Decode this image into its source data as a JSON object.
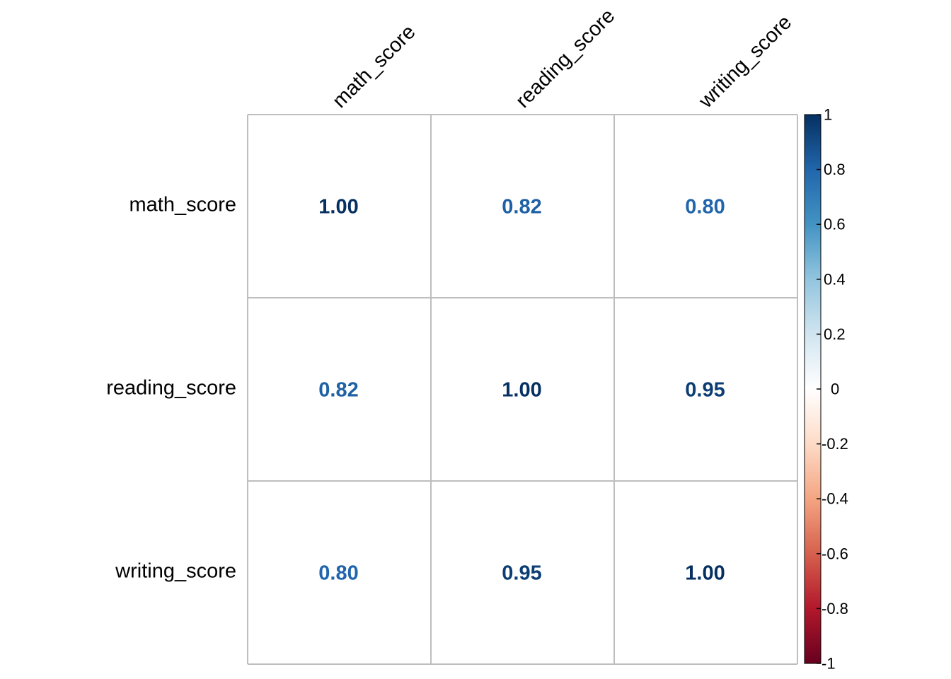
{
  "chart_data": {
    "type": "heatmap",
    "variables": [
      "math_score",
      "reading_score",
      "writing_score"
    ],
    "matrix": [
      [
        1.0,
        0.82,
        0.8
      ],
      [
        0.82,
        1.0,
        0.95
      ],
      [
        0.8,
        0.95,
        1.0
      ]
    ],
    "value_format_decimals": 2,
    "colorbar": {
      "range": [
        -1,
        1
      ],
      "ticks": [
        1,
        0.8,
        0.6,
        0.4,
        0.2,
        0,
        -0.2,
        -0.4,
        -0.6,
        -0.8,
        -1
      ],
      "tick_labels": [
        "1",
        "0.8",
        "0.6",
        "0.4",
        "0.2",
        "0",
        "-0.2",
        "-0.4",
        "-0.6",
        "-0.8",
        "-1"
      ],
      "palette": [
        "#67001F",
        "#B2182B",
        "#D6604D",
        "#F4A582",
        "#FDDBC7",
        "#FFFFFF",
        "#D1E5F0",
        "#92C5DE",
        "#4393C3",
        "#2166AC",
        "#053061"
      ]
    },
    "grid_color": "#BEBEBE",
    "title": "",
    "xlabel": "",
    "ylabel": ""
  }
}
